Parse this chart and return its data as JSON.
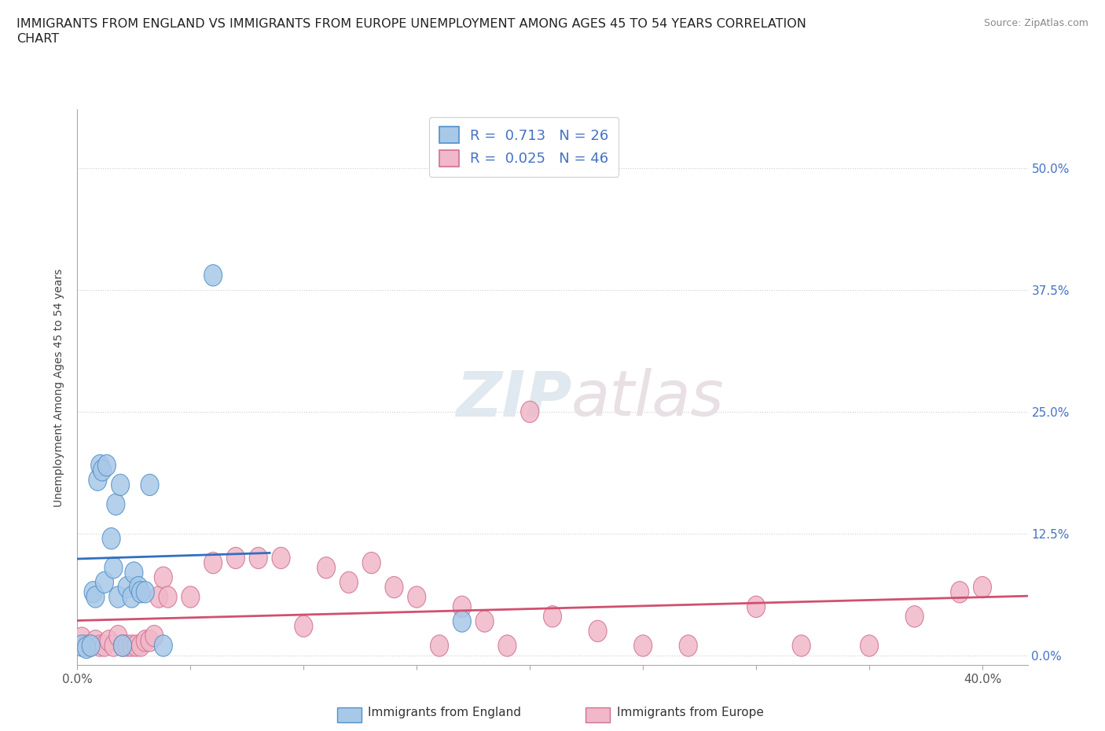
{
  "title_line1": "IMMIGRANTS FROM ENGLAND VS IMMIGRANTS FROM EUROPE UNEMPLOYMENT AMONG AGES 45 TO 54 YEARS CORRELATION",
  "title_line2": "CHART",
  "source": "Source: ZipAtlas.com",
  "ylabel": "Unemployment Among Ages 45 to 54 years",
  "xlim": [
    0.0,
    0.42
  ],
  "ylim": [
    -0.01,
    0.56
  ],
  "xticks": [
    0.0,
    0.05,
    0.1,
    0.15,
    0.2,
    0.25,
    0.3,
    0.35,
    0.4
  ],
  "xticklabels": [
    "0.0%",
    "",
    "",
    "",
    "",
    "",
    "",
    "",
    "40.0%"
  ],
  "yticks": [
    0.0,
    0.125,
    0.25,
    0.375,
    0.5
  ],
  "yticklabels_right": [
    "0.0%",
    "12.5%",
    "25.0%",
    "37.5%",
    "50.0%"
  ],
  "england_R": 0.713,
  "england_N": 26,
  "europe_R": 0.025,
  "europe_N": 46,
  "england_color": "#a8c8e8",
  "england_edge_color": "#5090c8",
  "england_line_color": "#3070c0",
  "europe_color": "#f0b8c8",
  "europe_edge_color": "#d07090",
  "europe_line_color": "#d05070",
  "tick_color": "#4472c4",
  "grid_color": "#cccccc",
  "england_x": [
    0.002,
    0.004,
    0.006,
    0.007,
    0.008,
    0.009,
    0.01,
    0.011,
    0.012,
    0.013,
    0.015,
    0.016,
    0.017,
    0.018,
    0.019,
    0.02,
    0.022,
    0.024,
    0.025,
    0.027,
    0.028,
    0.03,
    0.032,
    0.038,
    0.06,
    0.17
  ],
  "england_y": [
    0.01,
    0.008,
    0.01,
    0.065,
    0.06,
    0.18,
    0.195,
    0.19,
    0.075,
    0.195,
    0.12,
    0.09,
    0.155,
    0.06,
    0.175,
    0.01,
    0.07,
    0.06,
    0.085,
    0.07,
    0.065,
    0.065,
    0.175,
    0.01,
    0.39,
    0.035
  ],
  "europe_x": [
    0.002,
    0.004,
    0.006,
    0.008,
    0.01,
    0.012,
    0.014,
    0.016,
    0.018,
    0.02,
    0.022,
    0.024,
    0.026,
    0.028,
    0.03,
    0.032,
    0.034,
    0.036,
    0.038,
    0.04,
    0.05,
    0.06,
    0.07,
    0.08,
    0.09,
    0.1,
    0.11,
    0.12,
    0.13,
    0.14,
    0.15,
    0.16,
    0.17,
    0.18,
    0.19,
    0.2,
    0.21,
    0.23,
    0.25,
    0.27,
    0.3,
    0.32,
    0.35,
    0.37,
    0.39,
    0.4
  ],
  "europe_y": [
    0.018,
    0.01,
    0.01,
    0.015,
    0.01,
    0.01,
    0.015,
    0.01,
    0.02,
    0.01,
    0.01,
    0.01,
    0.01,
    0.01,
    0.015,
    0.015,
    0.02,
    0.06,
    0.08,
    0.06,
    0.06,
    0.095,
    0.1,
    0.1,
    0.1,
    0.03,
    0.09,
    0.075,
    0.095,
    0.07,
    0.06,
    0.01,
    0.05,
    0.035,
    0.01,
    0.25,
    0.04,
    0.025,
    0.01,
    0.01,
    0.05,
    0.01,
    0.01,
    0.04,
    0.065,
    0.07
  ]
}
